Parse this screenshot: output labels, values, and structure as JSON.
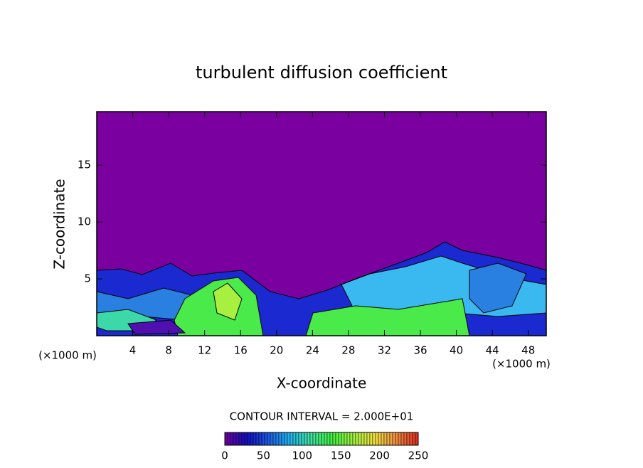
{
  "chart_data": {
    "type": "contour",
    "title": "turbulent diffusion coefficient",
    "x_label": "X-coordinate",
    "y_label": "Z-coordinate",
    "x_unit": "(×1000 m)",
    "xlim": [
      0,
      50
    ],
    "xticks": [
      4,
      8,
      12,
      16,
      20,
      24,
      28,
      32,
      36,
      40,
      44,
      48
    ],
    "ylim": [
      0,
      19.7
    ],
    "yticks": [
      5,
      10,
      15
    ],
    "background_color": "#7b00a0",
    "contour_interval": "CONTOUR INTERVAL = 2.000E+01",
    "colorbar": {
      "lim": [
        0,
        250
      ],
      "ticks": [
        0,
        50,
        100,
        150,
        200,
        250
      ],
      "colors": [
        "#6a00a0",
        "#1010c0",
        "#1e5ae6",
        "#20b4f0",
        "#40e0a0",
        "#40f040",
        "#a0f040",
        "#f0e040",
        "#f09040",
        "#e03020"
      ]
    }
  }
}
